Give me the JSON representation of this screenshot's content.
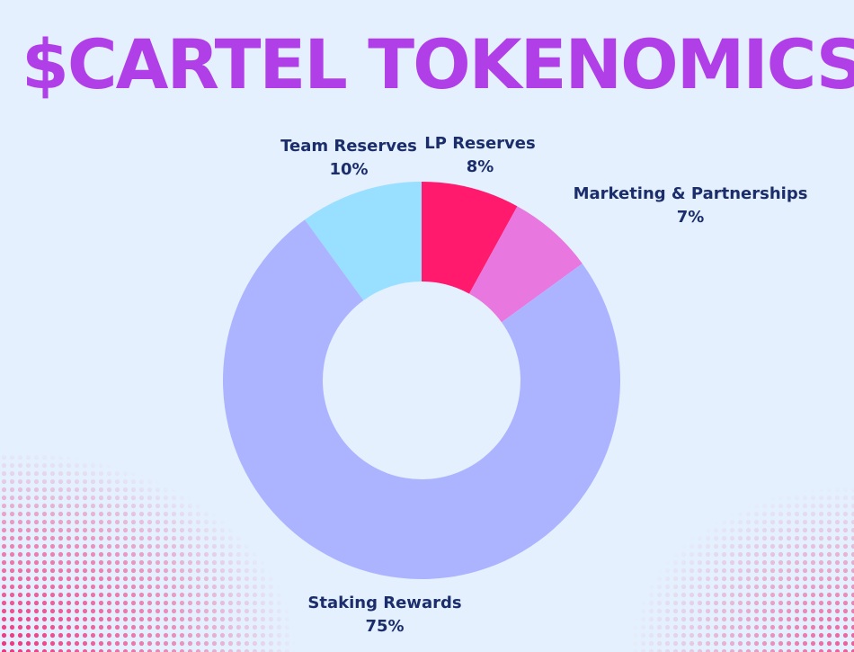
{
  "chart_data": {
    "type": "pie",
    "title": "$CARTEL TOKENOMICS",
    "categories": [
      "LP Reserves",
      "Marketing & Partnerships",
      "Staking Rewards",
      "Team Reserves"
    ],
    "values": [
      8,
      7,
      75,
      10
    ],
    "value_labels": [
      "8%",
      "7%",
      "75%",
      "10%"
    ],
    "colors": [
      "#ff1a6e",
      "#e877df",
      "#adb4ff",
      "#99dfff"
    ]
  }
}
